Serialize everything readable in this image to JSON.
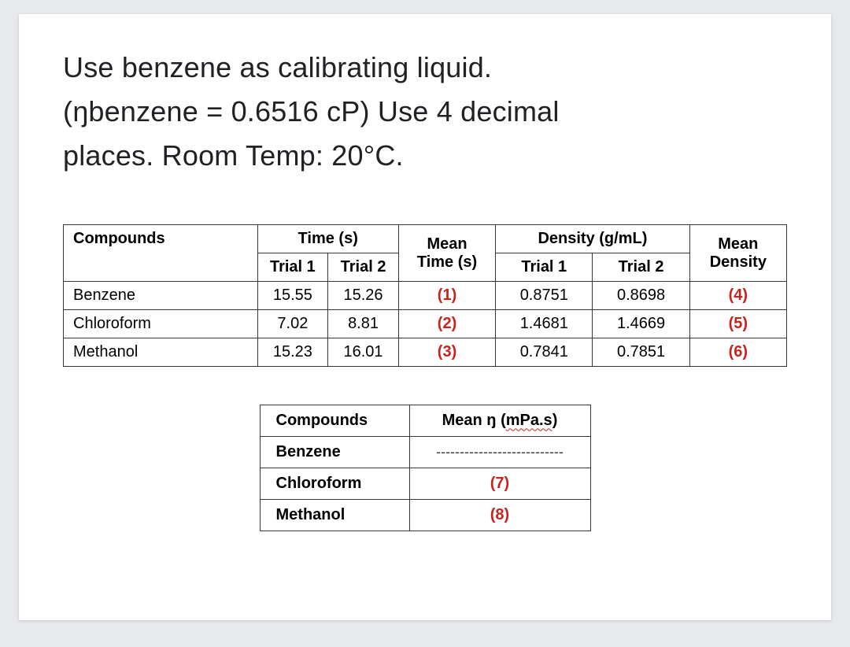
{
  "heading": {
    "line1": "Use benzene as calibrating liquid.",
    "line2": "(ŋbenzene = 0.6516 cP) Use 4 decimal",
    "line3": "places. Room Temp: 20°C."
  },
  "table1": {
    "headers": {
      "compounds": "Compounds",
      "time": "Time (s)",
      "mean_time": "Mean",
      "mean_time_sub": "Time (s)",
      "density": "Density (g/mL)",
      "mean_density": "Mean",
      "mean_density_sub": "Density",
      "trial1": "Trial 1",
      "trial2": "Trial 2"
    },
    "rows": [
      {
        "name": "Benzene",
        "t1": "15.55",
        "t2": "15.26",
        "mean_t": "(1)",
        "d1": "0.8751",
        "d2": "0.8698",
        "mean_d": "(4)"
      },
      {
        "name": "Chloroform",
        "t1": "7.02",
        "t2": "8.81",
        "mean_t": "(2)",
        "d1": "1.4681",
        "d2": "1.4669",
        "mean_d": "(5)"
      },
      {
        "name": "Methanol",
        "t1": "15.23",
        "t2": "16.01",
        "mean_t": "(3)",
        "d1": "0.7841",
        "d2": "0.7851",
        "mean_d": "(6)"
      }
    ]
  },
  "table2": {
    "headers": {
      "compounds": "Compounds",
      "mean_eta_prefix": "Mean ŋ (",
      "mean_eta_wavy": "mPa.s",
      "mean_eta_suffix": ")"
    },
    "rows": [
      {
        "name": "Benzene",
        "val": "---------------------------",
        "is_dash": true
      },
      {
        "name": "Chloroform",
        "val": "(7)",
        "is_dash": false
      },
      {
        "name": "Methanol",
        "val": "(8)",
        "is_dash": false
      }
    ]
  },
  "colors": {
    "answer": "#c6241f",
    "border": "#34373a",
    "text": "#202124",
    "page_bg": "#ffffff",
    "outer_bg": "#e8e9ec"
  }
}
